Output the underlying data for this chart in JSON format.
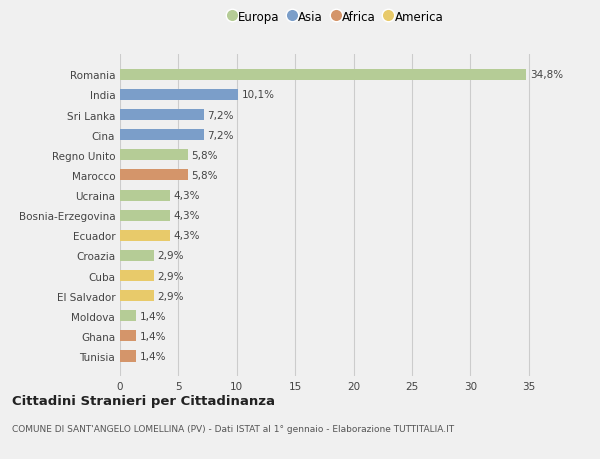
{
  "categories": [
    "Romania",
    "India",
    "Sri Lanka",
    "Cina",
    "Regno Unito",
    "Marocco",
    "Ucraina",
    "Bosnia-Erzegovina",
    "Ecuador",
    "Croazia",
    "Cuba",
    "El Salvador",
    "Moldova",
    "Ghana",
    "Tunisia"
  ],
  "values": [
    34.8,
    10.1,
    7.2,
    7.2,
    5.8,
    5.8,
    4.3,
    4.3,
    4.3,
    2.9,
    2.9,
    2.9,
    1.4,
    1.4,
    1.4
  ],
  "labels": [
    "34,8%",
    "10,1%",
    "7,2%",
    "7,2%",
    "5,8%",
    "5,8%",
    "4,3%",
    "4,3%",
    "4,3%",
    "2,9%",
    "2,9%",
    "2,9%",
    "1,4%",
    "1,4%",
    "1,4%"
  ],
  "continents": [
    "Europa",
    "Asia",
    "Asia",
    "Asia",
    "Europa",
    "Africa",
    "Europa",
    "Europa",
    "America",
    "Europa",
    "America",
    "America",
    "Europa",
    "Africa",
    "Africa"
  ],
  "colors": {
    "Europa": "#b5cc96",
    "Asia": "#7b9ec9",
    "Africa": "#d4956a",
    "America": "#e8ca6a"
  },
  "background_color": "#f0f0f0",
  "plot_background": "#f0f0f0",
  "title1": "Cittadini Stranieri per Cittadinanza",
  "title2": "COMUNE DI SANT'ANGELO LOMELLINA (PV) - Dati ISTAT al 1° gennaio - Elaborazione TUTTITALIA.IT",
  "xlim": [
    0,
    37
  ],
  "xticks": [
    0,
    5,
    10,
    15,
    20,
    25,
    30,
    35
  ],
  "legend_order": [
    "Europa",
    "Asia",
    "Africa",
    "America"
  ]
}
